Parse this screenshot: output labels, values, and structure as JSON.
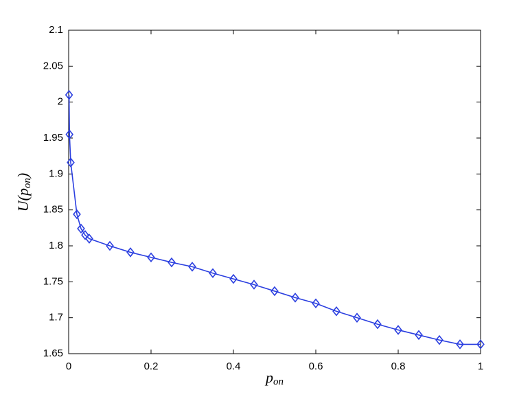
{
  "chart_data": {
    "type": "line",
    "xlabel": {
      "base": "p",
      "sub": "on"
    },
    "ylabel": {
      "prefix": "U(",
      "base": "p",
      "sub": "on",
      "suffix": ")"
    },
    "x": [
      0.001,
      0.002,
      0.005,
      0.02,
      0.03,
      0.04,
      0.05,
      0.1,
      0.15,
      0.2,
      0.25,
      0.3,
      0.35,
      0.4,
      0.45,
      0.5,
      0.55,
      0.6,
      0.65,
      0.7,
      0.75,
      0.8,
      0.85,
      0.9,
      0.95,
      1
    ],
    "values": [
      2.01,
      1.955,
      1.916,
      1.844,
      1.824,
      1.815,
      1.81,
      1.8,
      1.791,
      1.784,
      1.777,
      1.771,
      1.762,
      1.754,
      1.746,
      1.737,
      1.728,
      1.72,
      1.709,
      1.7,
      1.691,
      1.683,
      1.676,
      1.669,
      1.663,
      1.663
    ],
    "color": "#2b3fe0",
    "marker": "diamond",
    "xlim": [
      0,
      1
    ],
    "xticks": [
      0,
      0.2,
      0.4,
      0.6,
      0.8,
      1
    ],
    "ylim": [
      1.65,
      2.1
    ],
    "yticks": [
      1.65,
      1.7,
      1.75,
      1.8,
      1.85,
      1.9,
      1.95,
      2,
      2.05,
      2.1
    ],
    "grid": false
  }
}
